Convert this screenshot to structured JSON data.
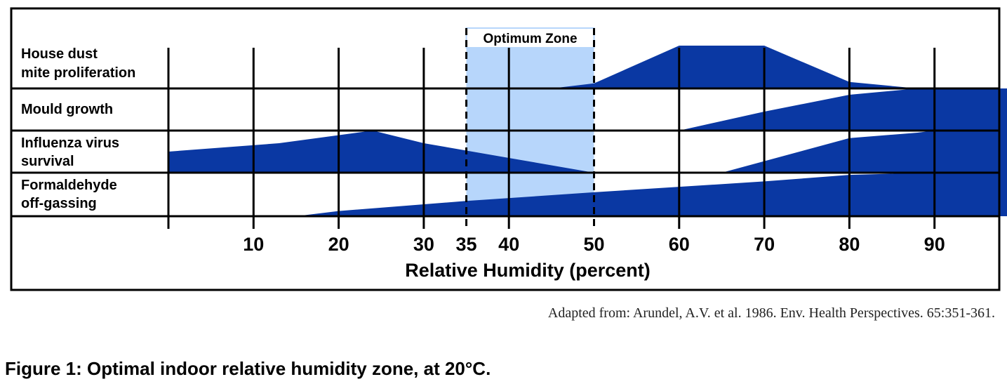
{
  "chart_data": {
    "type": "area",
    "xlabel": "Relative Humidity (percent)",
    "xlim": [
      0,
      100
    ],
    "ylim": [
      0,
      1
    ],
    "ticks": [
      10,
      20,
      30,
      35,
      40,
      50,
      60,
      70,
      80,
      90
    ],
    "optimum_zone": {
      "label": "Optimum Zone",
      "range": [
        35,
        50
      ]
    },
    "rows": [
      {
        "label": [
          "House dust",
          "mite proliferation"
        ],
        "points": [
          [
            45,
            0
          ],
          [
            50,
            0.12
          ],
          [
            60,
            1
          ],
          [
            70,
            1
          ],
          [
            80,
            0.15
          ],
          [
            88,
            0
          ]
        ]
      },
      {
        "label": [
          "Mould growth"
        ],
        "points": [
          [
            60,
            0
          ],
          [
            70,
            0.45
          ],
          [
            80,
            0.85
          ],
          [
            88,
            1
          ],
          [
            100,
            1
          ],
          [
            100,
            0
          ]
        ]
      },
      {
        "label": [
          "Influenza virus",
          "survival"
        ],
        "points": [
          [
            0,
            0.5
          ],
          [
            13,
            0.7
          ],
          [
            24,
            1
          ],
          [
            30,
            0.7
          ],
          [
            40,
            0.35
          ],
          [
            50,
            0
          ]
        ]
      },
      {
        "label": [
          "Formaldehyde",
          "off-gassing"
        ],
        "points": [
          [
            15,
            0
          ],
          [
            20,
            0.12
          ],
          [
            35,
            0.35
          ],
          [
            50,
            0.55
          ],
          [
            70,
            0.8
          ],
          [
            80,
            0.95
          ],
          [
            90,
            1
          ],
          [
            100,
            1
          ],
          [
            100,
            0
          ]
        ]
      }
    ],
    "influenza_right_tail": {
      "points": [
        [
          65,
          0
        ],
        [
          80,
          0.82
        ],
        [
          88,
          0.95
        ],
        [
          90,
          1
        ],
        [
          100,
          1
        ],
        [
          100,
          0
        ]
      ]
    }
  },
  "source_text": "Adapted from: Arundel, A.V. et al. 1986. Env. Health Perspectives. 65:351-361.",
  "caption": "Figure 1: Optimal indoor relative humidity zone, at 20°C.",
  "colors": {
    "fill": "#0a38a3",
    "zone": "#b7d6fb",
    "line": "#000000"
  }
}
